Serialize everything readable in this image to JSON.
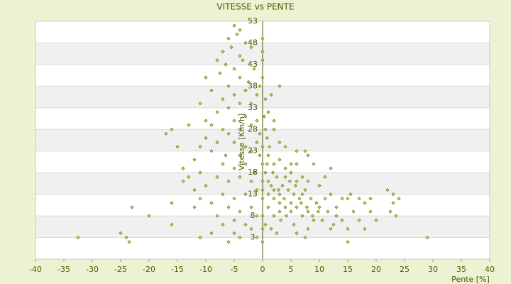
{
  "chart_data": {
    "type": "scatter",
    "title": "VITESSE vs PENTE",
    "x_label": "Pente [%]",
    "y_label": "Vitesse [Km/h]",
    "color": "#6b7a10",
    "xlim": [
      -40,
      40
    ],
    "xticks": [
      -40,
      -35,
      -30,
      -25,
      -20,
      -15,
      -10,
      -5,
      0,
      5,
      10,
      15,
      20,
      25,
      30,
      35,
      40
    ],
    "ylim": [
      -2,
      53
    ],
    "yticks": [
      3,
      8,
      13,
      18,
      23,
      28,
      33,
      38,
      43,
      48,
      53
    ],
    "grid": true,
    "x": [
      -5,
      -4,
      -4.5,
      -6,
      -3,
      -5.5,
      -7,
      -4,
      -2,
      -8,
      -6.5,
      -3.5,
      -5,
      -1.5,
      -7.5,
      -4,
      -2.5,
      -6,
      -9,
      -10,
      -3,
      -5,
      -1,
      -7,
      -4,
      -2,
      -6,
      -0.5,
      -8,
      -3,
      -5,
      -1,
      -9,
      -7,
      -4,
      -2,
      -0.5,
      -6,
      -10,
      -8,
      -5,
      -3,
      -1,
      -11,
      -9,
      -6.5,
      -4,
      -2,
      -0.5,
      -12,
      -7,
      -5,
      -3,
      -1.5,
      -11,
      -8,
      -6,
      -4,
      -2,
      -12,
      -10,
      -7,
      -5,
      -3,
      -1,
      -9,
      -6,
      -4,
      -2,
      -8,
      -5,
      -3,
      -1,
      -7,
      -9,
      -5,
      -2,
      -11,
      -6,
      -4,
      -1,
      -32.5,
      -25,
      -24,
      -23.5,
      -23,
      -20,
      -16,
      -16,
      -17,
      -16,
      -15,
      -14,
      -13,
      -11,
      -12,
      -14,
      -10,
      -11,
      -13,
      0.5,
      1,
      2,
      0.5,
      3,
      1.5,
      0.8,
      1.2,
      2,
      0.3,
      1,
      2,
      3,
      4,
      5,
      6,
      7,
      8,
      2.5,
      1.5,
      3.5,
      4.5,
      5.5,
      6.5,
      7.5,
      8.5,
      9.5,
      1,
      2,
      3,
      4,
      5,
      6,
      7,
      8,
      9,
      10,
      11,
      12,
      10,
      11,
      12,
      9,
      8,
      7.5,
      6,
      4,
      3,
      5,
      3,
      2,
      1,
      0.5,
      0.8,
      1.8,
      2.8,
      3.8,
      4.8,
      5.8,
      6.8,
      7.8,
      8.8,
      9.8,
      10.5,
      11.5,
      12.5,
      13,
      14,
      0.5,
      1.5,
      2.5,
      6,
      8,
      12,
      1,
      2,
      3,
      4,
      5,
      6,
      7,
      4.2,
      3.2,
      5.5,
      15,
      15.5,
      16,
      17,
      18,
      19,
      19,
      20,
      17,
      18,
      15,
      15,
      22,
      23,
      23,
      24,
      23.5,
      22.5,
      29,
      7.5,
      13,
      14,
      0,
      0,
      0,
      0,
      0,
      0,
      0,
      0,
      0,
      0,
      0,
      0
    ],
    "values": [
      52,
      51,
      50,
      49,
      48,
      47,
      46,
      45,
      47,
      44,
      43,
      44,
      42,
      42,
      41,
      40,
      39,
      38,
      37,
      40,
      37,
      36,
      36,
      35,
      34,
      34,
      33,
      38,
      32,
      31,
      30,
      30,
      29,
      28,
      28,
      29,
      27,
      27,
      26,
      25,
      25,
      24,
      25,
      24,
      23,
      22,
      22,
      23,
      22,
      21,
      20,
      19,
      20,
      18,
      18,
      17,
      16,
      17,
      16,
      14,
      15,
      13,
      12,
      13,
      14,
      11,
      10,
      9,
      10,
      8,
      7,
      6,
      8,
      6,
      4,
      4,
      5,
      3,
      2,
      3,
      3,
      3,
      4,
      3,
      2,
      10,
      8,
      11,
      6,
      27,
      28,
      24,
      19,
      17,
      12,
      10,
      16,
      30,
      34,
      29,
      35,
      32,
      30,
      28,
      38,
      36,
      26,
      24,
      28,
      31,
      22,
      20,
      21,
      19,
      18,
      20,
      17,
      16,
      17,
      15,
      15,
      14,
      13,
      12,
      14,
      12,
      11,
      13,
      12,
      11,
      10,
      9,
      10,
      8,
      9,
      7,
      10,
      12,
      13,
      15,
      17,
      19,
      20,
      22,
      23,
      23,
      24,
      25,
      11,
      9,
      8,
      10,
      18,
      20,
      18,
      14,
      12,
      16,
      15,
      11,
      10,
      8,
      9,
      7,
      9,
      6,
      10,
      12,
      6,
      5,
      4,
      4,
      5,
      5,
      16,
      14,
      13,
      17,
      20,
      16,
      13,
      8,
      7,
      6,
      12,
      13,
      9,
      12,
      11,
      12,
      9,
      7,
      7,
      5,
      5,
      2,
      14,
      11,
      13,
      12,
      8,
      9,
      3,
      3,
      8,
      7,
      49,
      46,
      44,
      40,
      24,
      20,
      16,
      12,
      8,
      2,
      5,
      14
    ]
  }
}
